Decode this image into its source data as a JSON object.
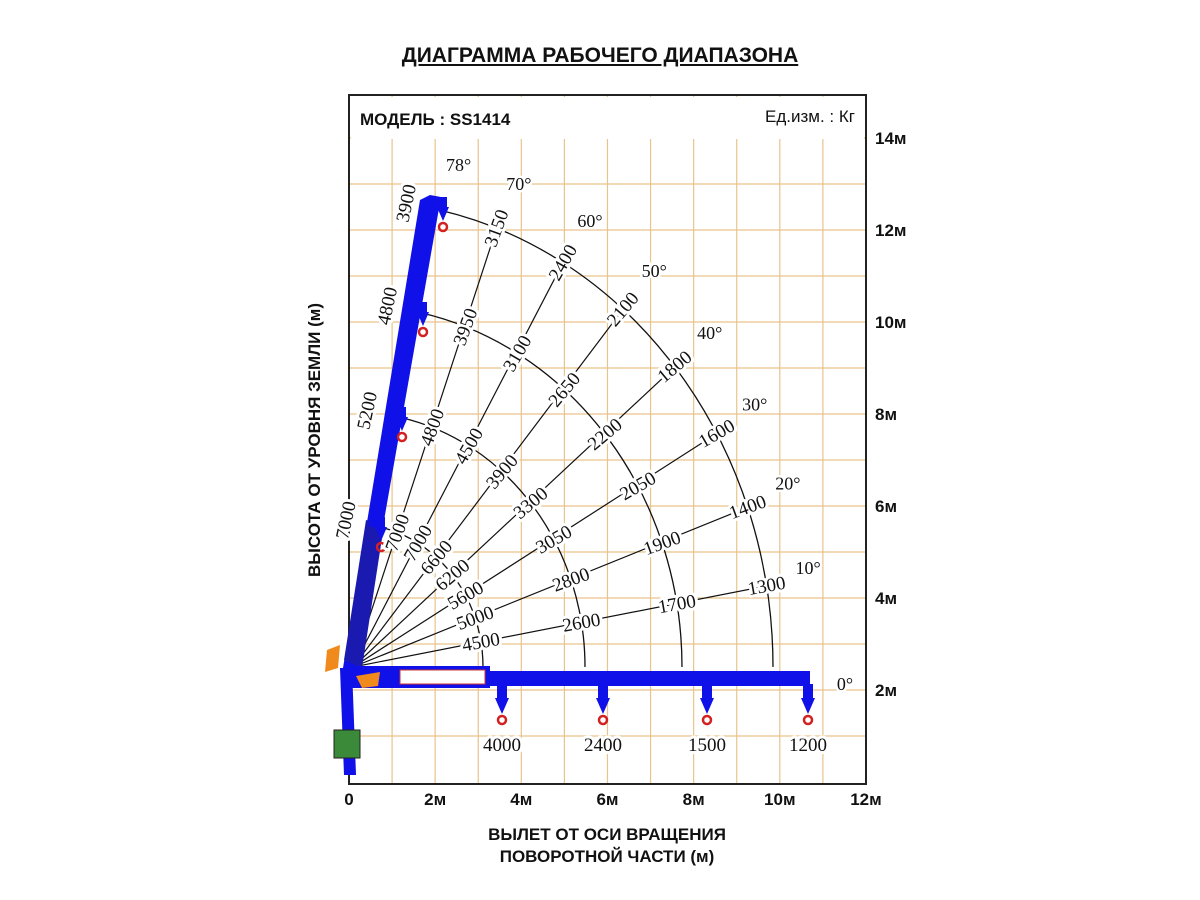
{
  "title": "ДИАГРАММА РАБОЧЕГО ДИАПАЗОНА",
  "model_label": "МОДЕЛЬ : SS1414",
  "units_label": "Ед.изм. : Кг",
  "y_axis_title": "ВЫСОТА ОТ УРОВНЯ ЗЕМЛИ (м)",
  "x_axis_title": [
    "ВЫЛЕТ ОТ ОСИ ВРАЩЕНИЯ",
    "ПОВОРОТНОЙ ЧАСТИ (м)"
  ],
  "x_ticks": [
    "0",
    "2м",
    "4м",
    "6м",
    "8м",
    "10м",
    "12м"
  ],
  "y_ticks": [
    "2м",
    "4м",
    "6м",
    "8м",
    "10м",
    "12м",
    "14м"
  ],
  "colors": {
    "boom": "#1010e8",
    "grid": "#e9c38c",
    "hook": "#d42020",
    "accent": "#f08a1c"
  },
  "rays": [
    {
      "angle": 78,
      "label": "78°",
      "loads": [
        "7000",
        "5200",
        "4800",
        "3900"
      ]
    },
    {
      "angle": 70,
      "label": "70°",
      "loads": [
        "7000",
        "4800",
        "3950",
        "3150"
      ]
    },
    {
      "angle": 60,
      "label": "60°",
      "loads": [
        "7000",
        "4500",
        "3100",
        "2400"
      ]
    },
    {
      "angle": 50,
      "label": "50°",
      "loads": [
        "6600",
        "3900",
        "2650",
        "2100"
      ]
    },
    {
      "angle": 40,
      "label": "40°",
      "loads": [
        "6200",
        "3300",
        "2200",
        "1800"
      ]
    },
    {
      "angle": 30,
      "label": "30°",
      "loads": [
        "5600",
        "3050",
        "2050",
        "1600"
      ]
    },
    {
      "angle": 20,
      "label": "20°",
      "loads": [
        "5000",
        "2800",
        "1900",
        "1400"
      ]
    },
    {
      "angle": 10,
      "label": "10°",
      "loads": [
        "4500",
        "2600",
        "1700",
        "1300"
      ]
    },
    {
      "angle": 0,
      "label": "0°",
      "loads": [
        "4000",
        "2400",
        "1500",
        "1200"
      ]
    }
  ]
}
